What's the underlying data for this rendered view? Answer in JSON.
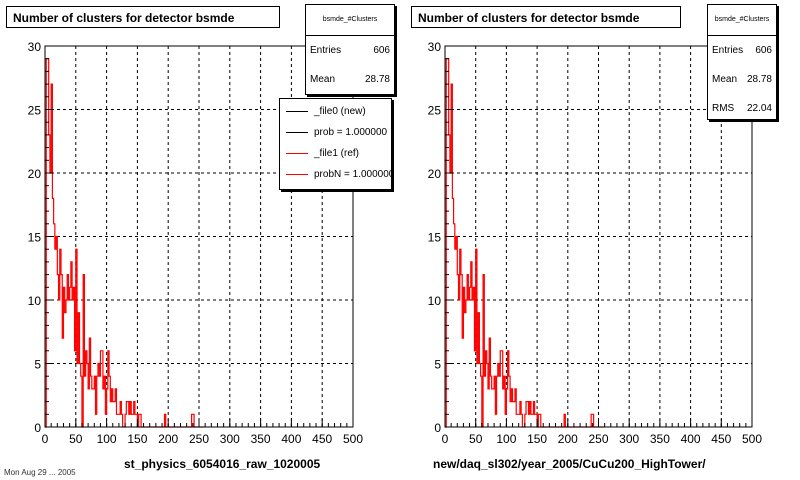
{
  "colors": {
    "new": "#000000",
    "ref": "#ff0000",
    "grid": "#000000"
  },
  "chart_data": [
    {
      "type": "bar",
      "title": "Number of clusters for detector bsmde",
      "xlabel": "st_physics_6054016_raw_1020005",
      "ylabel": "",
      "xlim": [
        0,
        500
      ],
      "ylim": [
        0,
        30
      ],
      "xticks": [
        "0",
        "50",
        "100",
        "150",
        "200",
        "250",
        "300",
        "350",
        "400",
        "450",
        "500"
      ],
      "yticks": [
        "0",
        "5",
        "10",
        "15",
        "20",
        "25",
        "30"
      ],
      "grid": true,
      "stats": {
        "name": "bsmde_#Clusters",
        "rows": [
          {
            "label": "Entries",
            "value": "606"
          },
          {
            "label": "Mean",
            "value": "28.78"
          }
        ]
      },
      "legend": [
        {
          "label": "_file0 (new)",
          "color": "#000000"
        },
        {
          "label": "prob = 1.000000",
          "color": "#000000"
        },
        {
          "label": "_file1 (ref)",
          "color": "#ff0000"
        },
        {
          "label": "probN = 1.000000",
          "color": "#ff0000"
        }
      ],
      "footer": "Mon Aug 29 ... 2005",
      "series": [
        {
          "name": "_file1 (ref)",
          "color": "#ff0000",
          "bin_width": 2,
          "values": [
            0,
            29,
            29,
            23,
            20,
            27,
            18,
            16,
            14,
            15,
            12,
            10,
            14,
            12,
            7,
            11,
            9,
            10,
            12,
            10,
            11,
            13,
            10,
            11,
            6,
            14,
            5,
            9,
            5,
            4,
            0,
            12,
            4,
            6,
            5,
            3,
            7,
            4,
            3,
            3,
            4,
            1,
            4,
            5,
            4,
            6,
            6,
            3,
            4,
            1,
            3,
            6,
            4,
            2,
            3,
            2,
            2,
            3,
            1,
            1,
            1,
            2,
            1,
            0,
            0,
            1,
            2,
            2,
            1,
            2,
            1,
            1,
            2,
            1,
            1,
            0,
            1,
            1,
            0,
            0,
            0,
            0,
            0,
            0,
            0,
            0,
            0,
            0,
            0,
            0,
            0,
            0,
            0,
            0,
            0,
            0,
            0,
            1,
            0,
            0,
            0,
            0,
            0,
            0,
            0,
            0,
            0,
            0,
            0,
            0,
            0,
            0,
            0,
            0,
            0,
            0,
            0,
            0,
            0,
            1,
            1,
            0,
            0,
            0,
            0,
            0,
            0,
            0,
            0
          ]
        }
      ]
    },
    {
      "type": "bar",
      "title": "Number of clusters for detector bsmde",
      "xlabel": "new/daq_sl302/year_2005/CuCu200_HighTower/",
      "ylabel": "",
      "xlim": [
        0,
        500
      ],
      "ylim": [
        0,
        30
      ],
      "xticks": [
        "0",
        "50",
        "100",
        "150",
        "200",
        "250",
        "300",
        "350",
        "400",
        "450",
        "500"
      ],
      "yticks": [
        "0",
        "5",
        "10",
        "15",
        "20",
        "25",
        "30"
      ],
      "grid": true,
      "stats": {
        "name": "bsmde_#Clusters",
        "rows": [
          {
            "label": "Entries",
            "value": "606"
          },
          {
            "label": "Mean",
            "value": "28.78"
          },
          {
            "label": "RMS",
            "value": "22.04"
          }
        ]
      },
      "series": [
        {
          "name": "_file1 (ref)",
          "color": "#ff0000",
          "bin_width": 2,
          "values": [
            0,
            29,
            29,
            23,
            20,
            27,
            18,
            16,
            14,
            15,
            12,
            10,
            14,
            12,
            7,
            11,
            9,
            10,
            12,
            10,
            11,
            13,
            10,
            11,
            6,
            14,
            5,
            9,
            5,
            4,
            0,
            12,
            4,
            6,
            5,
            3,
            7,
            4,
            3,
            3,
            4,
            1,
            4,
            5,
            4,
            6,
            6,
            3,
            4,
            1,
            3,
            6,
            4,
            2,
            3,
            2,
            2,
            3,
            1,
            1,
            1,
            2,
            1,
            0,
            0,
            1,
            2,
            2,
            1,
            2,
            1,
            1,
            2,
            1,
            1,
            0,
            1,
            1,
            0,
            0,
            0,
            0,
            0,
            0,
            0,
            0,
            0,
            0,
            0,
            0,
            0,
            0,
            0,
            0,
            0,
            0,
            0,
            1,
            0,
            0,
            0,
            0,
            0,
            0,
            0,
            0,
            0,
            0,
            0,
            0,
            0,
            0,
            0,
            0,
            0,
            0,
            0,
            0,
            0,
            1,
            1,
            0,
            0,
            0,
            0,
            0,
            0,
            0,
            0
          ]
        }
      ]
    }
  ]
}
